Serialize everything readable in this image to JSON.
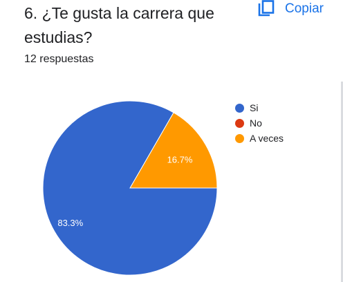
{
  "question": {
    "title": "6. ¿Te gusta la carrera que estudias?",
    "response_count": "12 respuestas"
  },
  "toolbar": {
    "copy_label": "Copiar",
    "copy_icon": "copy-icon",
    "accent_color": "#1a73e8"
  },
  "chart_data": {
    "type": "pie",
    "total_responses": 12,
    "slices": [
      {
        "label": "Si",
        "value": 10,
        "percent_label": "83.3%",
        "color": "#3366cc"
      },
      {
        "label": "No",
        "value": 0,
        "percent_label": "",
        "color": "#dc3912"
      },
      {
        "label": "A veces",
        "value": 2,
        "percent_label": "16.7%",
        "color": "#ff9900"
      }
    ],
    "legend_position": "right"
  }
}
